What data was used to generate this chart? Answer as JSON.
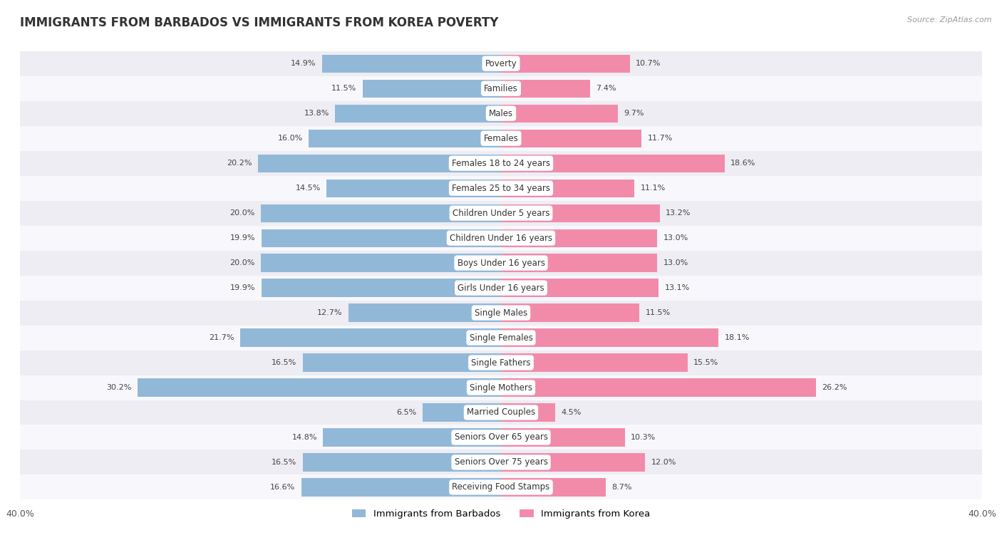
{
  "title": "IMMIGRANTS FROM BARBADOS VS IMMIGRANTS FROM KOREA POVERTY",
  "source": "Source: ZipAtlas.com",
  "categories": [
    "Poverty",
    "Families",
    "Males",
    "Females",
    "Females 18 to 24 years",
    "Females 25 to 34 years",
    "Children Under 5 years",
    "Children Under 16 years",
    "Boys Under 16 years",
    "Girls Under 16 years",
    "Single Males",
    "Single Females",
    "Single Fathers",
    "Single Mothers",
    "Married Couples",
    "Seniors Over 65 years",
    "Seniors Over 75 years",
    "Receiving Food Stamps"
  ],
  "barbados_values": [
    14.9,
    11.5,
    13.8,
    16.0,
    20.2,
    14.5,
    20.0,
    19.9,
    20.0,
    19.9,
    12.7,
    21.7,
    16.5,
    30.2,
    6.5,
    14.8,
    16.5,
    16.6
  ],
  "korea_values": [
    10.7,
    7.4,
    9.7,
    11.7,
    18.6,
    11.1,
    13.2,
    13.0,
    13.0,
    13.1,
    11.5,
    18.1,
    15.5,
    26.2,
    4.5,
    10.3,
    12.0,
    8.7
  ],
  "barbados_color": "#92b8d8",
  "korea_color": "#f28baa",
  "background_row_odd": "#ededf3",
  "background_row_even": "#f8f8fc",
  "x_max": 40.0,
  "label_fontsize": 8.5,
  "title_fontsize": 12,
  "bar_height": 0.72,
  "legend_barbados": "Immigrants from Barbados",
  "legend_korea": "Immigrants from Korea"
}
